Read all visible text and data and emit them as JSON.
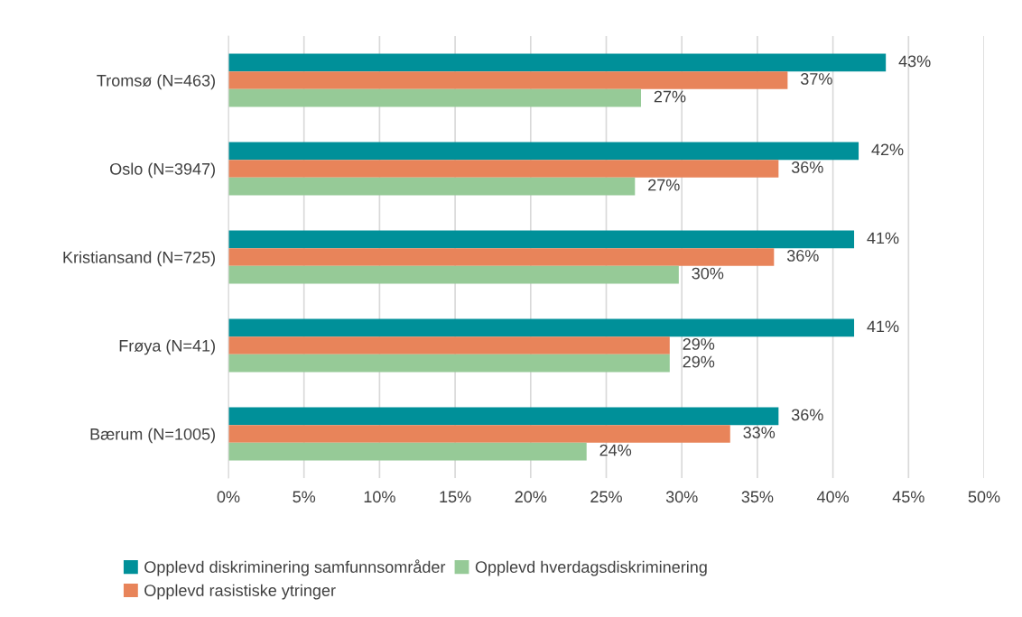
{
  "chart_data": {
    "type": "bar",
    "orientation": "horizontal",
    "categories": [
      "Tromsø (N=463)",
      "Oslo (N=3947)",
      "Kristiansand (N=725)",
      "Frøya (N=41)",
      "Bærum (N=1005)"
    ],
    "series": [
      {
        "name": "Opplevd diskriminering samfunnsområder",
        "color": "#009099",
        "values": [
          43.5,
          41.7,
          41.4,
          41.4,
          36.4
        ],
        "value_labels": [
          "43%",
          "42%",
          "41%",
          "41%",
          "36%"
        ]
      },
      {
        "name": "Opplevd rasistiske ytringer",
        "color": "#e8845a",
        "values": [
          37.0,
          36.4,
          36.1,
          29.2,
          33.2
        ],
        "value_labels": [
          "37%",
          "36%",
          "36%",
          "29%",
          "33%"
        ]
      },
      {
        "name": "Opplevd hverdagsdiskriminering",
        "color": "#96ca97",
        "values": [
          27.3,
          26.9,
          29.8,
          29.2,
          23.7
        ],
        "value_labels": [
          "27%",
          "27%",
          "30%",
          "29%",
          "24%"
        ]
      }
    ],
    "xlim": [
      0,
      50
    ],
    "xticks": [
      {
        "value": 0,
        "label": "0%"
      },
      {
        "value": 5,
        "label": "5%"
      },
      {
        "value": 10,
        "label": "10%"
      },
      {
        "value": 15,
        "label": "15%"
      },
      {
        "value": 20,
        "label": "20%"
      },
      {
        "value": 25,
        "label": "25%"
      },
      {
        "value": 30,
        "label": "30%"
      },
      {
        "value": 35,
        "label": "35%"
      },
      {
        "value": 40,
        "label": "40%"
      },
      {
        "value": 45,
        "label": "45%"
      },
      {
        "value": 50,
        "label": "50%"
      }
    ],
    "grid": "x",
    "legend": "bottom"
  }
}
